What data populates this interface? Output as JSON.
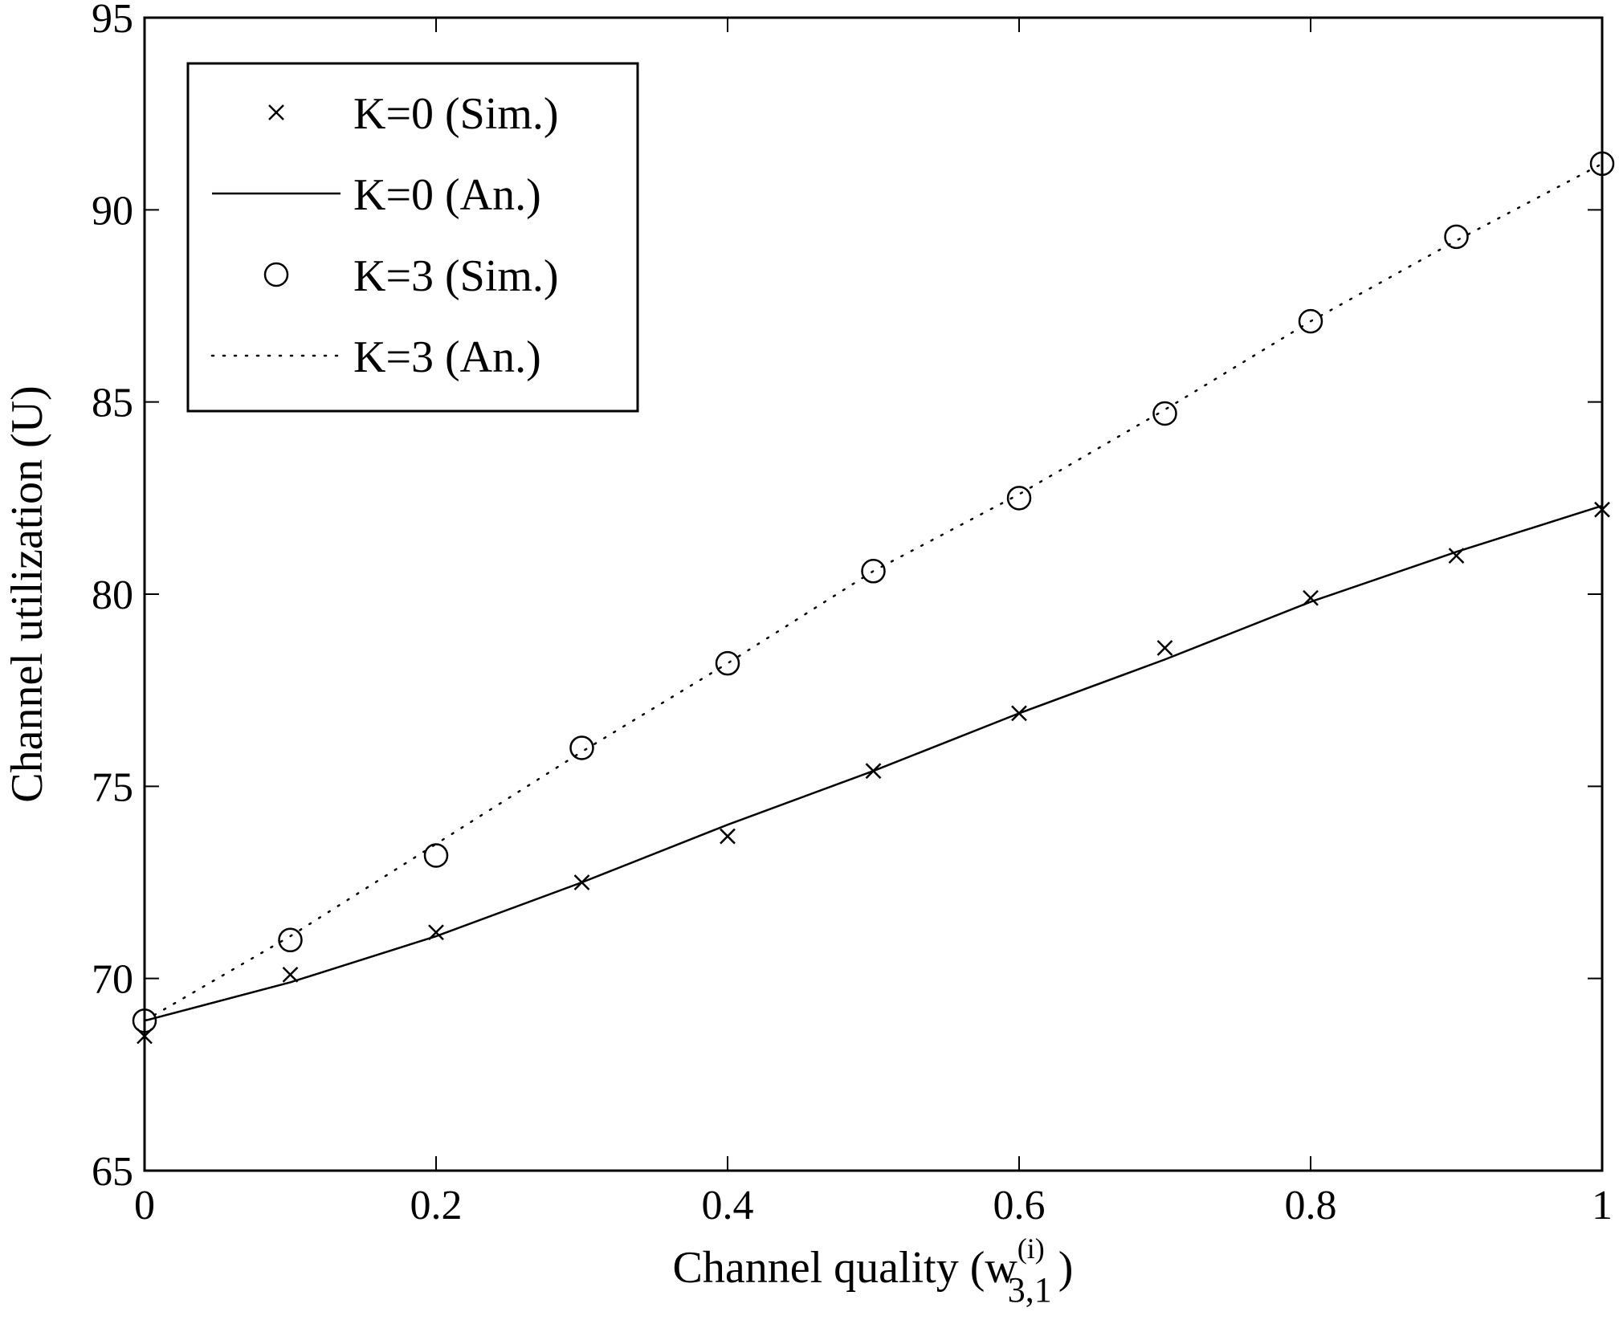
{
  "chart_data": {
    "type": "line",
    "xlabel": "Channel quality (w",
    "xlabel_superscript": "(i)",
    "xlabel_subscript": "3,1",
    "xlabel_suffix": ")",
    "ylabel": "Channel utilization (U)",
    "xlim": [
      0,
      1
    ],
    "ylim": [
      65,
      95
    ],
    "xticks": [
      0,
      0.2,
      0.4,
      0.6,
      0.8,
      1
    ],
    "xtick_labels": [
      "0",
      "0.2",
      "0.4",
      "0.6",
      "0.8",
      "1"
    ],
    "yticks": [
      65,
      70,
      75,
      80,
      85,
      90,
      95
    ],
    "ytick_labels": [
      "65",
      "70",
      "75",
      "80",
      "85",
      "90",
      "95"
    ],
    "grid": false,
    "legend_position": "top-left",
    "series": [
      {
        "name": "K=0 (Sim.)",
        "style": "x-marker",
        "x": [
          0,
          0.1,
          0.2,
          0.3,
          0.4,
          0.5,
          0.6,
          0.7,
          0.8,
          0.9,
          1
        ],
        "y": [
          68.5,
          70.1,
          71.2,
          72.5,
          73.7,
          75.4,
          76.9,
          78.6,
          79.9,
          81.0,
          82.2
        ]
      },
      {
        "name": "K=0 (An.)",
        "style": "solid-line",
        "x": [
          0,
          0.1,
          0.2,
          0.3,
          0.4,
          0.5,
          0.6,
          0.7,
          0.8,
          0.9,
          1
        ],
        "y": [
          68.9,
          69.9,
          71.1,
          72.5,
          74.0,
          75.4,
          76.9,
          78.3,
          79.8,
          81.1,
          82.3
        ]
      },
      {
        "name": "K=3 (Sim.)",
        "style": "circle-marker",
        "x": [
          0,
          0.1,
          0.2,
          0.3,
          0.4,
          0.5,
          0.6,
          0.7,
          0.8,
          0.9,
          1
        ],
        "y": [
          68.9,
          71.0,
          73.2,
          76.0,
          78.2,
          80.6,
          82.5,
          84.7,
          87.1,
          89.3,
          91.2
        ]
      },
      {
        "name": "K=3 (An.)",
        "style": "dotted-line",
        "x": [
          0,
          0.1,
          0.2,
          0.3,
          0.4,
          0.5,
          0.6,
          0.7,
          0.8,
          0.9,
          1
        ],
        "y": [
          68.9,
          71.1,
          73.5,
          75.9,
          78.2,
          80.6,
          82.6,
          84.8,
          87.1,
          89.2,
          91.2
        ]
      }
    ]
  }
}
